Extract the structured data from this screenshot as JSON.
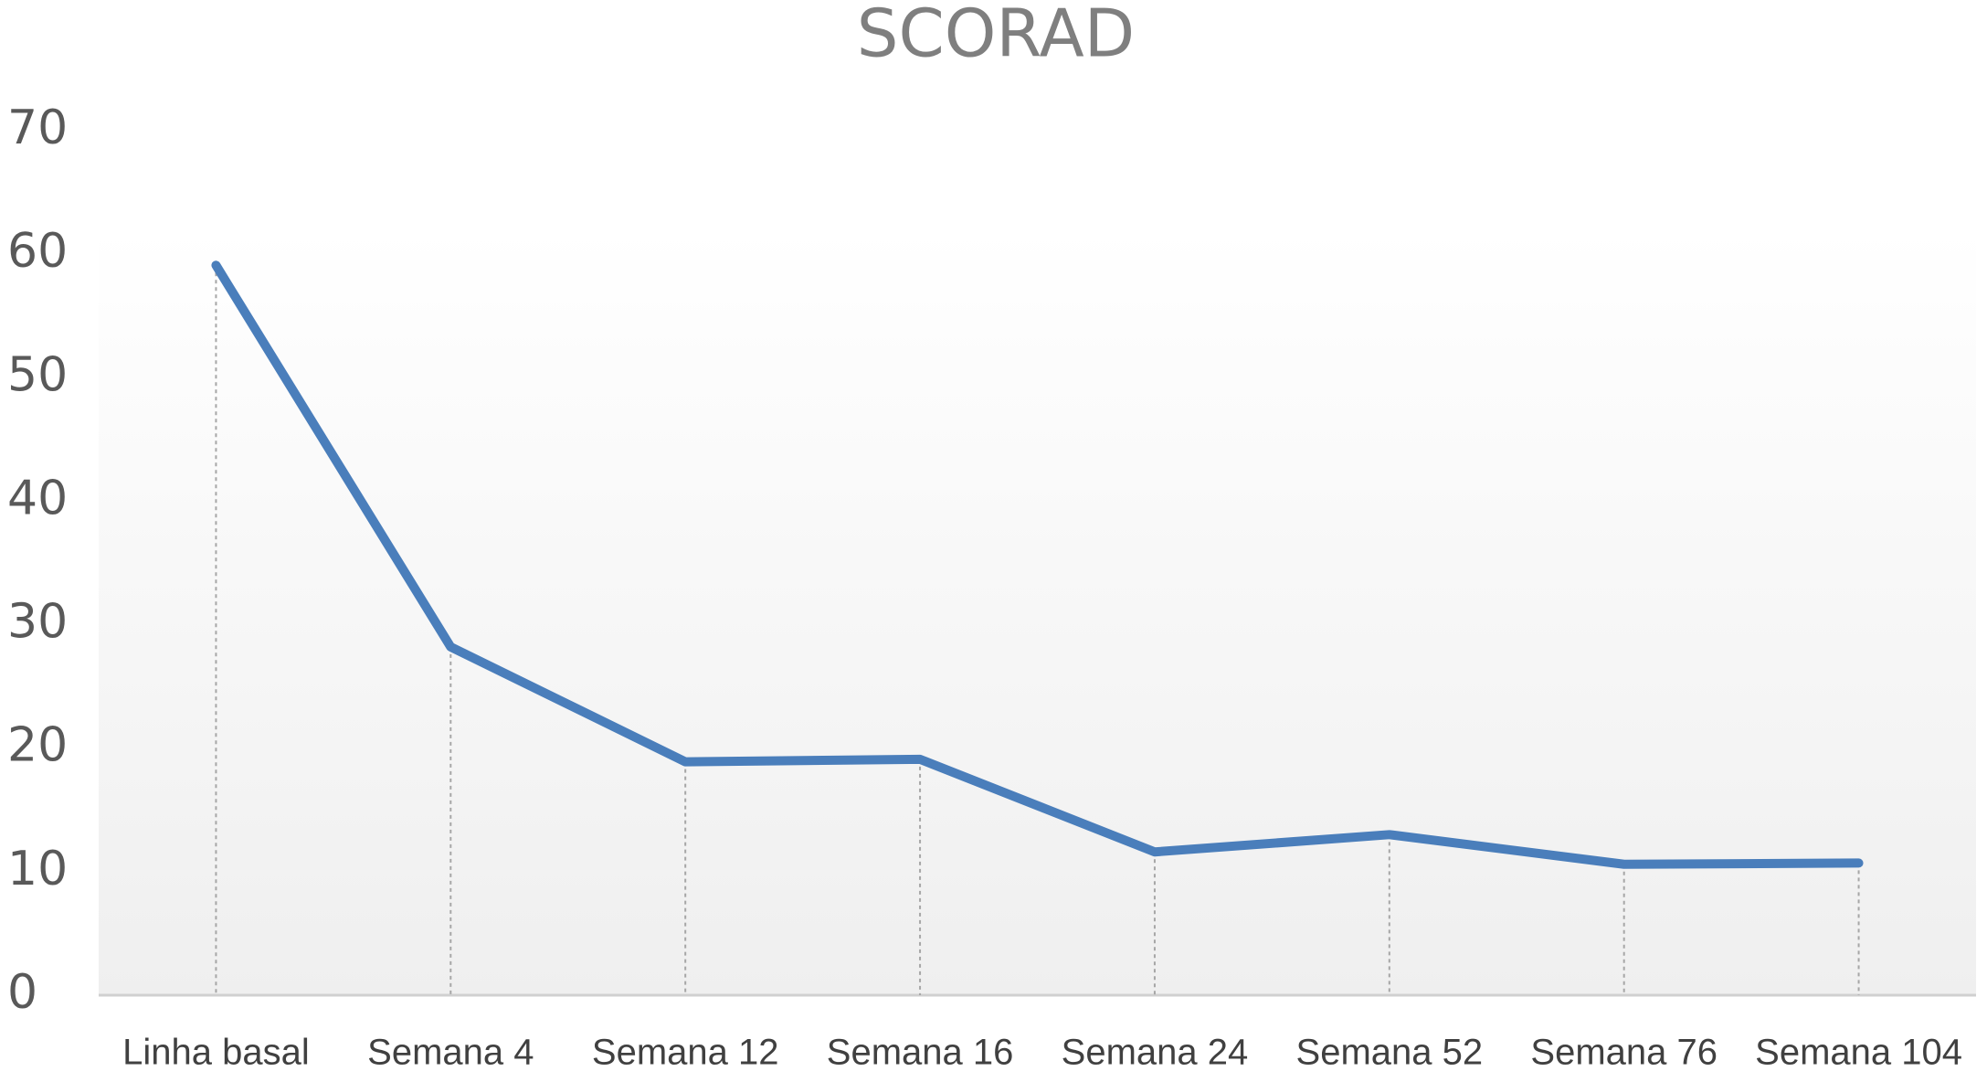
{
  "chart_data": {
    "type": "line",
    "title": "SCORAD",
    "categories": [
      "Linha basal",
      "Semana 4",
      "Semana 12",
      "Semana 16",
      "Semana 24",
      "Semana 52",
      "Semana 76",
      "Semana 104"
    ],
    "values": [
      59.1,
      28.2,
      18.9,
      19.1,
      11.6,
      13.0,
      10.6,
      10.7
    ],
    "color": "#4a7ebb",
    "ylim": [
      0,
      70
    ],
    "yticks": [
      0,
      10,
      20,
      30,
      40,
      50,
      60,
      70
    ],
    "grid": false,
    "drop_lines": true
  }
}
